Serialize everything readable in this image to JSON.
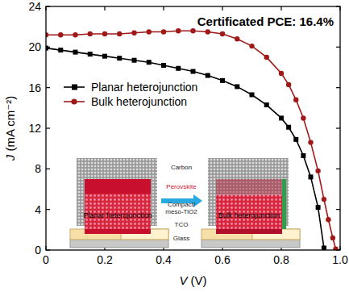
{
  "chart_data": {
    "type": "line",
    "x_label": "V (V)",
    "y_label": "J (mA cm⁻²)",
    "annotation": "Certificated PCE: 16.4%",
    "x": [
      0,
      0.05,
      0.1,
      0.15,
      0.2,
      0.25,
      0.3,
      0.35,
      0.4,
      0.45,
      0.5,
      0.55,
      0.6,
      0.65,
      0.7,
      0.75,
      0.8,
      0.825,
      0.85,
      0.875,
      0.9,
      0.925,
      0.945,
      0.96,
      0.975,
      0.985
    ],
    "series": [
      {
        "name": "Planar heterojunction",
        "color": "#000000",
        "marker": "square",
        "values": [
          19.9,
          19.7,
          19.5,
          19.3,
          19.1,
          18.9,
          18.7,
          18.5,
          18.2,
          17.9,
          17.6,
          17.2,
          16.7,
          16.1,
          15.3,
          14.3,
          13.0,
          12.1,
          10.9,
          9.3,
          7.2,
          4.2,
          0.2,
          null,
          null,
          null
        ]
      },
      {
        "name": "Bulk heterojunction",
        "color": "#a01818",
        "marker": "circle",
        "values": [
          21.2,
          21.2,
          21.2,
          21.3,
          21.3,
          21.3,
          21.4,
          21.5,
          21.5,
          21.6,
          21.6,
          21.5,
          21.3,
          20.8,
          20.1,
          19.0,
          17.4,
          16.3,
          14.8,
          13.0,
          10.6,
          7.8,
          5.0,
          3.0,
          1.2,
          0.1
        ]
      }
    ],
    "xlim": [
      0,
      1.0
    ],
    "xticks": [
      0,
      0.2,
      0.4,
      0.6,
      0.8,
      {
        "value": 1.0,
        "label": "1.0"
      }
    ],
    "ylim": [
      0,
      24
    ],
    "yticks": [
      0,
      4,
      8,
      12,
      16,
      20,
      24
    ],
    "legend": "upper left",
    "inset": {
      "left_label": "Planar heterojunction",
      "right_label": "Bulk heterojunction",
      "layers": [
        "Carbon",
        "Perovskite",
        "Compact/",
        "meso-TiO2",
        "TCO",
        "Glass"
      ]
    }
  }
}
